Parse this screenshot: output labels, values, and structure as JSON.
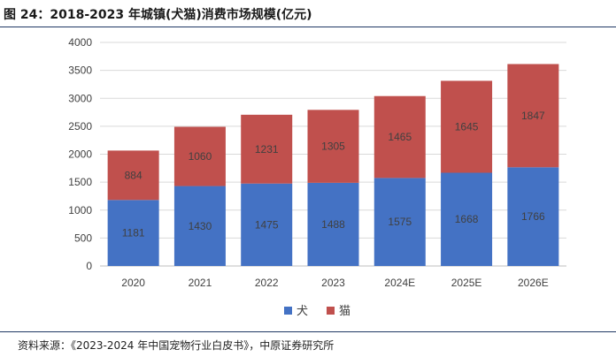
{
  "header": {
    "title": "图 24：2018-2023 年城镇(犬猫)消费市场规模(亿元)"
  },
  "footer": {
    "source": "资料来源：《2023-2024 年中国宠物行业白皮书》，中原证券研究所"
  },
  "chart_data": {
    "type": "bar",
    "stacked": true,
    "title": "2018-2023 年城镇(犬猫)消费市场规模(亿元)",
    "categories": [
      "2020",
      "2021",
      "2022",
      "2023",
      "2024E",
      "2025E",
      "2026E"
    ],
    "series": [
      {
        "name": "犬",
        "color": "#4472c4",
        "values": [
          1181,
          1430,
          1475,
          1488,
          1575,
          1668,
          1766
        ]
      },
      {
        "name": "猫",
        "color": "#c0504d",
        "values": [
          884,
          1060,
          1231,
          1305,
          1465,
          1645,
          1847
        ]
      }
    ],
    "ylim": [
      0,
      4000
    ],
    "yticks": [
      0,
      500,
      1000,
      1500,
      2000,
      2500,
      3000,
      3500,
      4000
    ],
    "grid": true,
    "legend": "bottom-center",
    "xlabel": "",
    "ylabel": ""
  }
}
